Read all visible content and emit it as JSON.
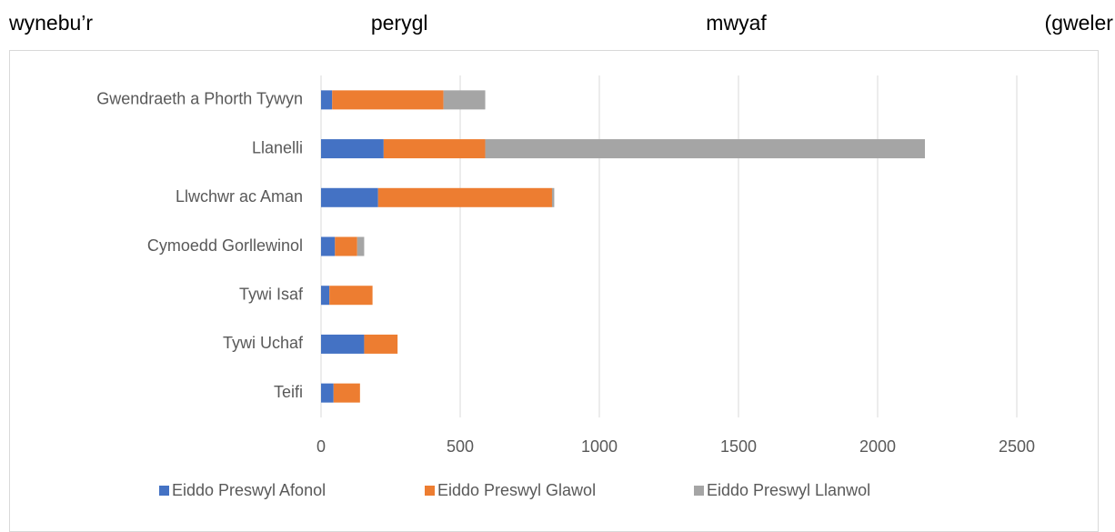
{
  "text_line": [
    "wynebu’r",
    "perygl",
    "mwyaf",
    "(gweler"
  ],
  "chart_data": {
    "type": "stacked-barh",
    "categories": [
      "Gwendraeth a Phorth Tywyn",
      "Llanelli",
      "Llwchwr ac Aman",
      "Cymoedd Gorllewinol",
      "Tywi Isaf",
      "Tywi Uchaf",
      "Teifi"
    ],
    "series": [
      {
        "name": "Eiddo Preswyl Afonol",
        "color": "#4472c4",
        "values": [
          40,
          225,
          205,
          50,
          30,
          155,
          45
        ]
      },
      {
        "name": "Eiddo Preswyl Glawol",
        "color": "#ed7d31",
        "values": [
          400,
          365,
          625,
          80,
          155,
          120,
          95
        ]
      },
      {
        "name": "Eiddo Preswyl Llanwol",
        "color": "#a5a5a5",
        "values": [
          150,
          1580,
          8,
          25,
          0,
          0,
          0
        ]
      }
    ],
    "xlim": [
      0,
      2500
    ],
    "xticks": [
      0,
      500,
      1000,
      1500,
      2000,
      2500
    ],
    "grid": true,
    "legend": "bottom"
  }
}
